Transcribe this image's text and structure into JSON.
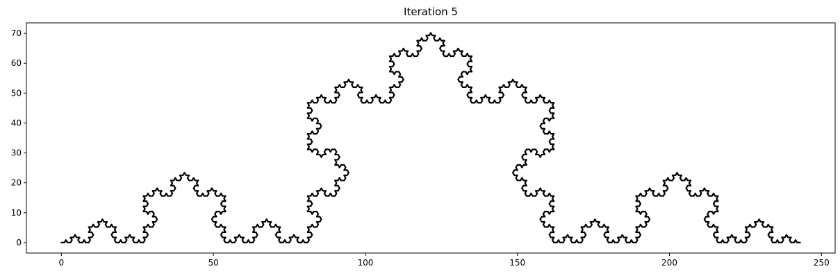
{
  "chart_data": {
    "type": "line",
    "title": "Iteration 5",
    "xlabel": "",
    "ylabel": "",
    "xlim": [
      -11.5,
      254.5
    ],
    "ylim": [
      -3.5,
      73.5
    ],
    "xticks": [
      0,
      50,
      100,
      150,
      200,
      250
    ],
    "yticks": [
      0,
      10,
      20,
      30,
      40,
      50,
      60,
      70
    ],
    "grid": false,
    "legend": "none",
    "series": [
      {
        "curve": "koch",
        "iterations": 5,
        "start": [
          0,
          0
        ],
        "end": [
          243,
          0
        ],
        "color": "#000000"
      }
    ]
  }
}
